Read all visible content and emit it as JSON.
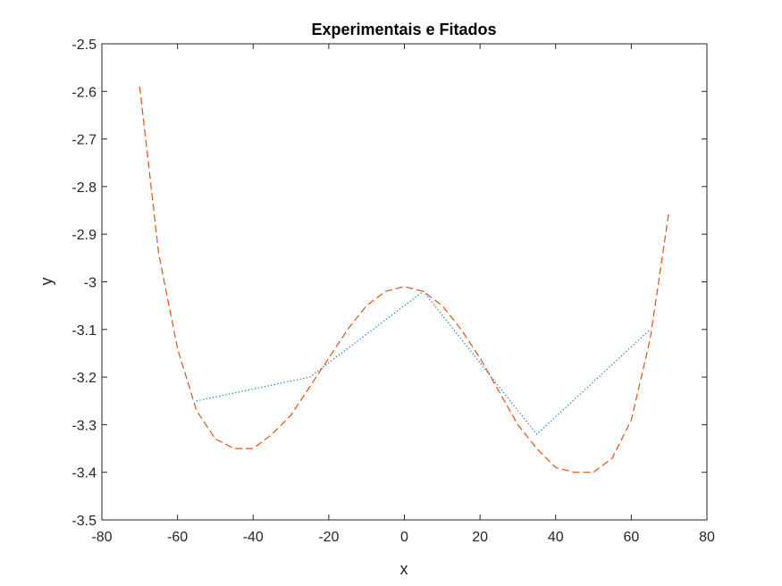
{
  "chart_data": {
    "type": "line",
    "title": "Experimentais e Fitados",
    "xlabel": "x",
    "ylabel": "y",
    "xlim": [
      -80,
      80
    ],
    "ylim": [
      -3.5,
      -2.5
    ],
    "xticks": [
      -80,
      -60,
      -40,
      -20,
      0,
      20,
      40,
      60,
      80
    ],
    "yticks": [
      -3.5,
      -3.4,
      -3.3,
      -3.2,
      -3.1,
      -3,
      -2.9,
      -2.8,
      -2.7,
      -2.6,
      -2.5
    ],
    "grid": false,
    "legend": "none",
    "series": [
      {
        "style": "dotted",
        "color": "#0072BD",
        "x": [
          -55,
          -25,
          5,
          35,
          65
        ],
        "y": [
          -3.25,
          -3.2,
          -3.02,
          -3.32,
          -3.1
        ]
      },
      {
        "style": "dashed",
        "color": "#D95319",
        "x": [
          -70,
          -65,
          -60,
          -55,
          -50,
          -45,
          -40,
          -35,
          -30,
          -25,
          -20,
          -15,
          -10,
          -5,
          0,
          5,
          10,
          15,
          20,
          25,
          30,
          35,
          40,
          45,
          50,
          55,
          60,
          65,
          70
        ],
        "y": [
          -2.59,
          -2.94,
          -3.14,
          -3.27,
          -3.33,
          -3.35,
          -3.35,
          -3.32,
          -3.28,
          -3.22,
          -3.16,
          -3.1,
          -3.05,
          -3.02,
          -3.01,
          -3.02,
          -3.05,
          -3.1,
          -3.16,
          -3.23,
          -3.3,
          -3.35,
          -3.39,
          -3.4,
          -3.4,
          -3.37,
          -3.29,
          -3.12,
          -2.85
        ]
      }
    ]
  }
}
